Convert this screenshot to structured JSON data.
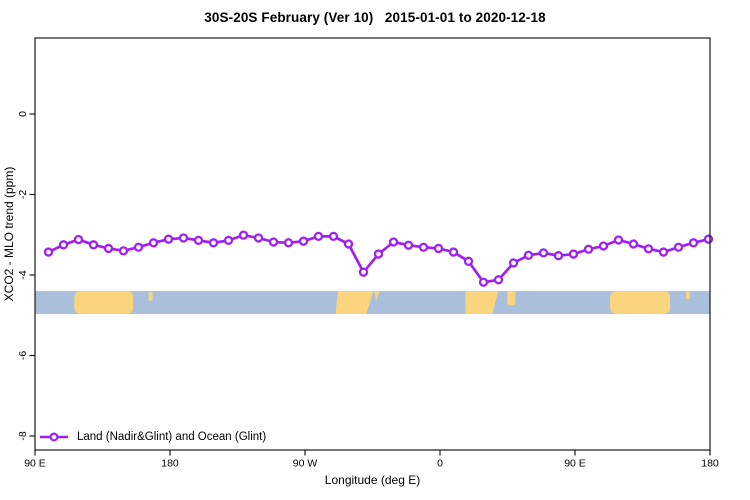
{
  "title": "30S-20S February (Ver 10)   2015-01-01 to 2020-12-18",
  "legend": {
    "label": "Land (Nadir&Glint) and Ocean (Glint)"
  },
  "chart_data": {
    "type": "line",
    "title": "30S-20S February (Ver 10)   2015-01-01 to 2020-12-18",
    "xlabel": "Longitude (deg E)",
    "ylabel": "XCO2 - MLO trend (ppm)",
    "grid": false,
    "legend_position": "bottom-left-inside",
    "x_axis": {
      "axis_start_deg": 90,
      "axis_end_deg": 540,
      "tick_axis_deg": [
        90,
        180,
        270,
        360,
        450,
        540
      ],
      "tick_labels": [
        "90 E",
        "180",
        "90 W",
        "0",
        "90 E",
        "180"
      ]
    },
    "y_axis": {
      "ticks": [
        0,
        -2,
        -4,
        -6,
        -8
      ],
      "tick_labels": [
        "0",
        "-2",
        "-4",
        "-6",
        "-8"
      ],
      "range_top": 1.9,
      "range_bottom": -8.35
    },
    "series": [
      {
        "name": "Land (Nadir&Glint) and Ocean (Glint)",
        "color": "#A020F0",
        "marker": "open-circle",
        "lon_axis_deg": [
          99,
          109,
          119,
          129,
          139,
          149,
          159,
          169,
          179,
          189,
          199,
          209,
          219,
          229,
          239,
          249,
          259,
          269,
          279,
          289,
          299,
          309,
          319,
          329,
          339,
          349,
          359,
          369,
          379,
          389,
          399,
          409,
          419,
          429,
          439,
          449,
          459,
          469,
          479,
          489,
          499,
          509,
          519,
          529,
          539
        ],
        "lon_deg_e": [
          99,
          109,
          119,
          129,
          139,
          149,
          159,
          169,
          179,
          -171,
          -161,
          -151,
          -141,
          -131,
          -121,
          -111,
          -101,
          -91,
          -81,
          -71,
          -61,
          -51,
          -41,
          -31,
          -21,
          -11,
          -1,
          9,
          19,
          29,
          39,
          49,
          59,
          69,
          79,
          89,
          99,
          109,
          119,
          129,
          139,
          149,
          159,
          169,
          179
        ],
        "values": [
          -3.43,
          -3.25,
          -3.12,
          -3.25,
          -3.34,
          -3.4,
          -3.31,
          -3.2,
          -3.11,
          -3.08,
          -3.14,
          -3.2,
          -3.14,
          -3.01,
          -3.08,
          -3.18,
          -3.2,
          -3.16,
          -3.04,
          -3.04,
          -3.23,
          -3.93,
          -3.48,
          -3.18,
          -3.26,
          -3.31,
          -3.34,
          -3.43,
          -3.66,
          -4.18,
          -4.12,
          -3.7,
          -3.51,
          -3.45,
          -3.52,
          -3.48,
          -3.36,
          -3.28,
          -3.13,
          -3.23,
          -3.35,
          -3.43,
          -3.31,
          -3.2,
          -3.11
        ]
      }
    ],
    "map_band": {
      "description": "land-ocean strip for 30S-20S latitude band",
      "value_top": -4.4,
      "value_bottom": -4.97,
      "ocean_color": "#A9BFDC",
      "land_color": "#FBD57E",
      "land_patches": [
        {
          "name": "australia-west-copy",
          "shape": "rect",
          "lon": [
            116.2,
            155.4
          ],
          "frac": [
            0,
            1
          ],
          "rx": 6
        },
        {
          "name": "new-caledonia-west-copy",
          "shape": "rect",
          "lon": [
            165.7,
            168.4
          ],
          "frac": [
            0.05,
            0.42
          ],
          "rx": 1
        },
        {
          "name": "south-america-main",
          "shape": "polygon",
          "pts": [
            [
              291.8,
              0
            ],
            [
              315.6,
              0
            ],
            [
              310.8,
              1
            ],
            [
              290.4,
              1
            ]
          ]
        },
        {
          "name": "south-america-northeast",
          "shape": "polygon",
          "pts": [
            [
              316.4,
              0
            ],
            [
              319.8,
              0
            ],
            [
              317.3,
              0.45
            ]
          ]
        },
        {
          "name": "africa",
          "shape": "polygon",
          "pts": [
            [
              376.9,
              0
            ],
            [
              398.7,
              0
            ],
            [
              394.9,
              1
            ],
            [
              376.9,
              1
            ]
          ]
        },
        {
          "name": "madagascar",
          "shape": "rect",
          "lon": [
            404.8,
            410.3
          ],
          "frac": [
            0,
            0.62
          ],
          "rx": 2
        },
        {
          "name": "australia-east-copy",
          "shape": "rect",
          "lon": [
            473.4,
            513.4
          ],
          "frac": [
            0,
            1
          ],
          "rx": 6
        },
        {
          "name": "new-caledonia-east-copy",
          "shape": "rect",
          "lon": [
            523.9,
            526.5
          ],
          "frac": [
            0.02,
            0.35
          ],
          "rx": 1
        }
      ]
    },
    "colors": {
      "series": "#A020F0",
      "ocean": "#A9BFDC",
      "land": "#FBD57E",
      "axis": "#1a1a1a"
    }
  }
}
